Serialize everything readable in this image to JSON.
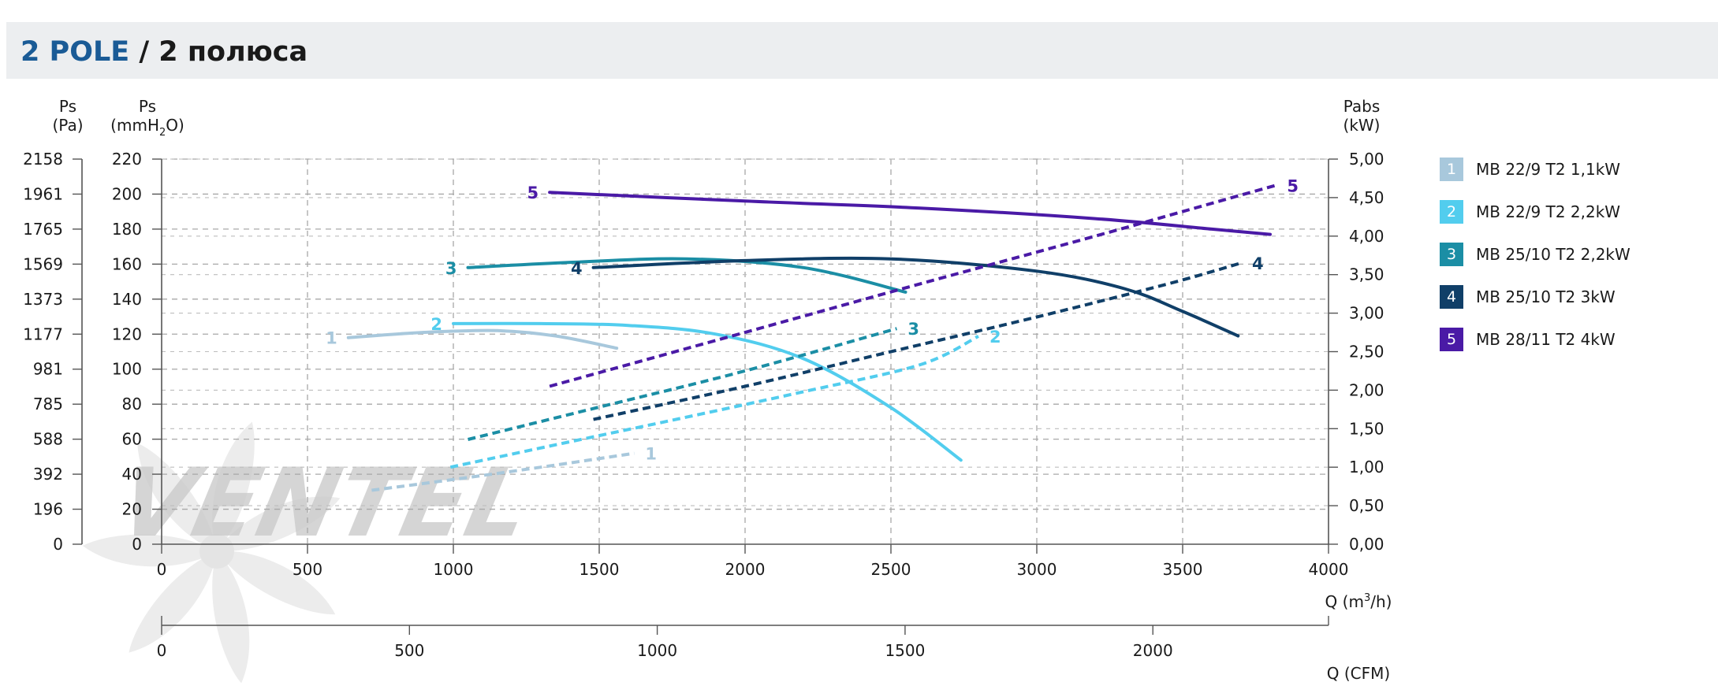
{
  "header": {
    "title_accent": "2 POLE",
    "title_rest": " / 2 полюса"
  },
  "logo": {
    "text": "VENTEL",
    "color_main": "#c8c8c8",
    "color_accent": "#9cc4e6"
  },
  "chart_data": {
    "type": "line",
    "x_label": "Q (m³/h)",
    "x_label_base": "Q (m",
    "x_label_sup": "3",
    "x_label_tail": "/h)",
    "x_ticks": [
      0,
      500,
      1000,
      1500,
      2000,
      2500,
      3000,
      3500,
      4000
    ],
    "x_range": [
      0,
      4000
    ],
    "x2_label": "Q (CFM)",
    "x2_ticks": [
      0,
      500,
      1000,
      1500,
      2000
    ],
    "x2_factor": 0.5886,
    "y_left_pa": {
      "label_1": "Ps",
      "label_2": "(Pa)",
      "ticks": [
        "0",
        "196",
        "392",
        "588",
        "785",
        "981",
        "1177",
        "1373",
        "1569",
        "1765",
        "1961",
        "2158"
      ]
    },
    "y_left_mm": {
      "label_1": "Ps",
      "label_2_base": "(mmH",
      "label_2_sub": "2",
      "label_2_tail": "O)",
      "ticks": [
        0,
        20,
        40,
        60,
        80,
        100,
        120,
        140,
        160,
        180,
        200,
        220
      ],
      "range": [
        0,
        220
      ]
    },
    "y_right": {
      "label_1": "Pabs",
      "label_2": "(kW)",
      "ticks": [
        "0,00",
        "0,50",
        "1,00",
        "1,50",
        "2,00",
        "2,50",
        "3,00",
        "3,50",
        "4,00",
        "4,50",
        "5,00"
      ],
      "range": [
        0,
        5
      ]
    },
    "grid": true,
    "legend_position": "right",
    "series": [
      {
        "id": "1",
        "name": "MB 22/9 T2 1,1kW",
        "color": "#a8c8dc",
        "pressure": [
          [
            640,
            118
          ],
          [
            900,
            121
          ],
          [
            1150,
            122
          ],
          [
            1350,
            119
          ],
          [
            1560,
            112
          ]
        ],
        "power": [
          [
            720,
            0.7
          ],
          [
            1000,
            0.84
          ],
          [
            1300,
            1.0
          ],
          [
            1620,
            1.18
          ]
        ]
      },
      {
        "id": "2",
        "name": "MB 22/9 T2 2,2kW",
        "color": "#52cdee",
        "pressure": [
          [
            1000,
            126
          ],
          [
            1300,
            126
          ],
          [
            1600,
            125
          ],
          [
            1900,
            120
          ],
          [
            2200,
            106
          ],
          [
            2500,
            78
          ],
          [
            2740,
            48
          ]
        ],
        "power": [
          [
            990,
            1.0
          ],
          [
            1400,
            1.33
          ],
          [
            1800,
            1.65
          ],
          [
            2200,
            1.98
          ],
          [
            2600,
            2.33
          ],
          [
            2800,
            2.7
          ]
        ]
      },
      {
        "id": "3",
        "name": "MB 25/10 T2 2,2kW",
        "color": "#1b8ea5",
        "pressure": [
          [
            1050,
            158
          ],
          [
            1400,
            161
          ],
          [
            1800,
            163
          ],
          [
            2200,
            158
          ],
          [
            2550,
            144
          ]
        ],
        "power": [
          [
            1050,
            1.36
          ],
          [
            1500,
            1.78
          ],
          [
            2000,
            2.25
          ],
          [
            2520,
            2.8
          ]
        ]
      },
      {
        "id": "4",
        "name": "MB 25/10 T2 3kW",
        "color": "#103f68",
        "pressure": [
          [
            1480,
            158
          ],
          [
            2000,
            162
          ],
          [
            2500,
            163
          ],
          [
            3000,
            156
          ],
          [
            3300,
            146
          ],
          [
            3500,
            133
          ],
          [
            3690,
            119
          ]
        ],
        "power": [
          [
            1480,
            1.62
          ],
          [
            2000,
            2.05
          ],
          [
            2500,
            2.5
          ],
          [
            3000,
            2.95
          ],
          [
            3450,
            3.38
          ],
          [
            3700,
            3.65
          ]
        ]
      },
      {
        "id": "5",
        "name": "MB 28/11 T2 4kW",
        "color": "#4a1aa6",
        "pressure": [
          [
            1330,
            201
          ],
          [
            2000,
            196
          ],
          [
            2600,
            192
          ],
          [
            3200,
            186
          ],
          [
            3600,
            180
          ],
          [
            3800,
            177
          ]
        ],
        "power": [
          [
            1330,
            2.05
          ],
          [
            2000,
            2.75
          ],
          [
            2600,
            3.38
          ],
          [
            3200,
            4.0
          ],
          [
            3650,
            4.48
          ],
          [
            3820,
            4.66
          ]
        ]
      }
    ]
  }
}
